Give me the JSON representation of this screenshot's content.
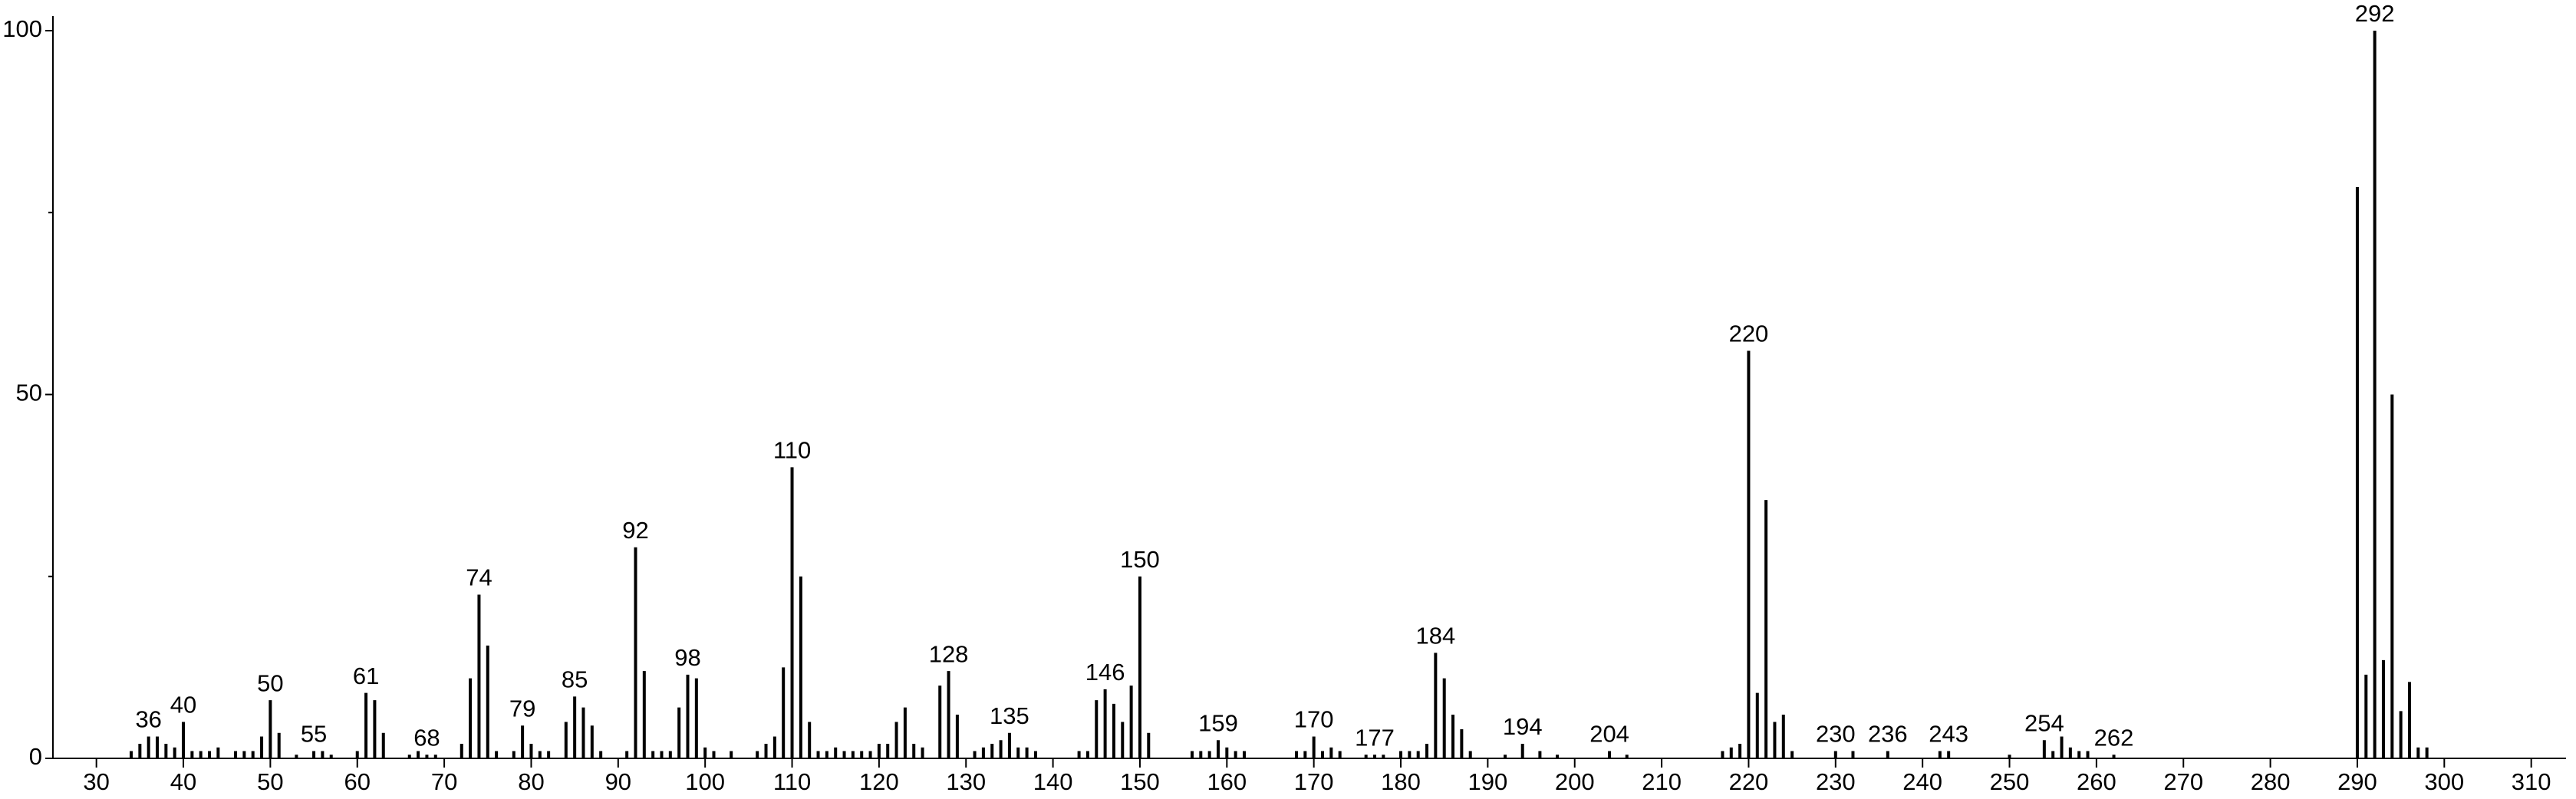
{
  "chart_data": {
    "type": "stem",
    "x": [
      34,
      35,
      36,
      37,
      38,
      39,
      40,
      41,
      42,
      43,
      44,
      46,
      47,
      48,
      49,
      50,
      51,
      53,
      55,
      56,
      57,
      60,
      61,
      62,
      63,
      66,
      67,
      68,
      69,
      72,
      73,
      74,
      75,
      76,
      78,
      79,
      80,
      81,
      82,
      84,
      85,
      86,
      87,
      88,
      91,
      92,
      93,
      94,
      95,
      96,
      97,
      98,
      99,
      100,
      101,
      103,
      106,
      107,
      108,
      109,
      110,
      111,
      112,
      113,
      114,
      115,
      116,
      117,
      118,
      119,
      120,
      121,
      122,
      123,
      124,
      125,
      127,
      128,
      129,
      131,
      132,
      133,
      134,
      135,
      136,
      137,
      138,
      143,
      144,
      145,
      146,
      147,
      148,
      149,
      150,
      151,
      156,
      157,
      158,
      159,
      160,
      161,
      162,
      168,
      169,
      170,
      171,
      172,
      173,
      176,
      177,
      178,
      180,
      181,
      182,
      183,
      184,
      185,
      186,
      187,
      188,
      192,
      194,
      196,
      198,
      204,
      206,
      217,
      218,
      219,
      220,
      221,
      222,
      223,
      224,
      225,
      230,
      232,
      236,
      242,
      243,
      250,
      254,
      255,
      256,
      257,
      258,
      259,
      262,
      290,
      291,
      292,
      293,
      294,
      295,
      296,
      297,
      298
    ],
    "values": [
      1,
      2,
      3,
      3,
      2,
      1.5,
      5,
      1,
      1,
      1,
      1.5,
      1,
      1,
      1,
      3,
      8,
      3.5,
      0.5,
      1,
      1,
      0.5,
      1,
      9,
      8,
      3.5,
      0.5,
      1,
      0.5,
      0.5,
      2,
      11,
      22.5,
      15.5,
      1,
      1,
      4.5,
      2,
      1,
      1,
      5,
      8.5,
      7,
      4.5,
      1,
      1,
      29,
      12,
      1,
      1,
      1,
      7,
      11.5,
      11,
      1.5,
      1,
      1,
      1,
      2,
      3,
      12.5,
      40,
      25,
      5,
      1,
      1,
      1.5,
      1,
      1,
      1,
      1,
      2,
      2,
      5,
      7,
      2,
      1.5,
      10,
      12,
      6,
      1,
      1.5,
      2,
      2.5,
      3.5,
      1.5,
      1.5,
      1,
      1,
      1,
      8,
      9.5,
      7.5,
      5,
      10,
      25,
      3.5,
      1,
      1,
      1,
      2.5,
      1.5,
      1,
      1,
      1,
      1,
      3,
      1,
      1.5,
      1,
      0.5,
      0.5,
      0.5,
      1,
      1,
      1,
      2,
      14.5,
      11,
      6,
      4,
      1,
      0.5,
      2,
      1,
      0.5,
      1,
      0.5,
      1,
      1.5,
      2,
      56,
      9,
      35.5,
      5,
      6,
      1,
      1,
      1,
      1,
      1,
      1,
      0.5,
      2.5,
      1,
      3,
      1.5,
      1,
      1,
      0.5,
      78.5,
      11.5,
      100,
      13.5,
      50,
      6.5,
      10.5,
      1.5,
      1.5
    ],
    "peak_labels": [
      36,
      40,
      50,
      55,
      61,
      68,
      74,
      79,
      85,
      92,
      98,
      110,
      128,
      135,
      146,
      150,
      159,
      170,
      177,
      184,
      194,
      204,
      220,
      230,
      236,
      243,
      254,
      262,
      292
    ],
    "color": "#000000",
    "xlim": [
      25,
      314
    ],
    "xticks": [
      30,
      40,
      50,
      60,
      70,
      80,
      90,
      100,
      110,
      120,
      130,
      140,
      150,
      160,
      170,
      180,
      190,
      200,
      210,
      220,
      230,
      240,
      250,
      260,
      270,
      280,
      290,
      300,
      310
    ],
    "ylim": [
      0,
      102
    ],
    "yticks": [
      0,
      50,
      100
    ],
    "yminorticks": [
      25,
      75
    ]
  }
}
